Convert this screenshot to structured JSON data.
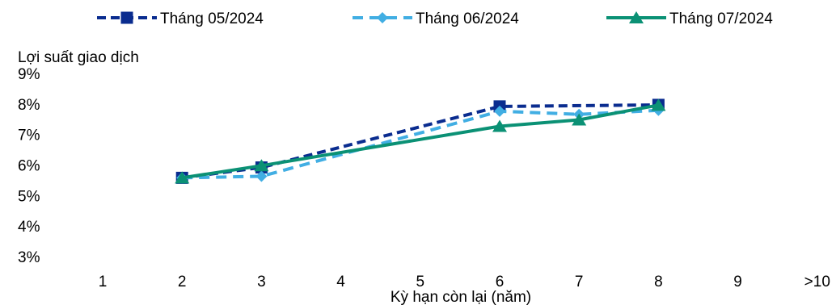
{
  "chart_data": {
    "type": "line",
    "xlabel": "Kỳ hạn còn lại (năm)",
    "ylabel": "Lợi suất giao dịch",
    "x": [
      "1",
      "2",
      "3",
      "4",
      "5",
      "6",
      "7",
      "8",
      "9",
      ">10"
    ],
    "ylim": [
      0.03,
      0.09
    ],
    "yticks": [
      "3%",
      "4%",
      "5%",
      "6%",
      "7%",
      "8%",
      "9%"
    ],
    "grid": false,
    "legend_position": "top",
    "series": [
      {
        "name": "Tháng 05/2024",
        "color": "#0a2c8f",
        "style": "dashed",
        "marker": "square",
        "values": [
          null,
          0.0558,
          0.0592,
          null,
          null,
          0.0792,
          null,
          0.0797,
          null,
          null
        ]
      },
      {
        "name": "Tháng 06/2024",
        "color": "#41aee3",
        "style": "dashed",
        "marker": "diamond",
        "values": [
          null,
          0.0558,
          0.0563,
          null,
          null,
          0.0776,
          0.0766,
          0.0779,
          null,
          null
        ]
      },
      {
        "name": "Tháng 07/2024",
        "color": "#0b9175",
        "style": "solid",
        "marker": "triangle",
        "values": [
          null,
          0.0558,
          0.0598,
          null,
          null,
          0.0727,
          0.0748,
          0.0796,
          null,
          null
        ]
      }
    ]
  }
}
